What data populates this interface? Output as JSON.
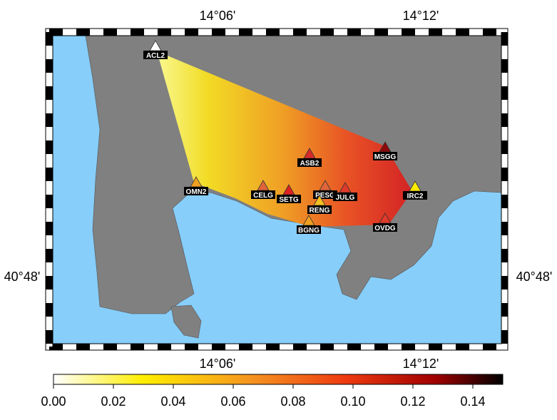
{
  "map": {
    "top_labels": [
      "14°06'",
      "14°12'"
    ],
    "bottom_labels": [
      "14°06'",
      "14°12'"
    ],
    "left_label": "40°48'",
    "right_label": "40°48'",
    "sea_color": "#87cefa",
    "land_color": "#808080",
    "stations": [
      {
        "label": "ACL2",
        "color": "#ffffff"
      },
      {
        "label": "MSGG",
        "color": "#8b0a0a"
      },
      {
        "label": "ASB2",
        "color": "#d42a2a"
      },
      {
        "label": "OMN2",
        "color": "#f0a020"
      },
      {
        "label": "CELG",
        "color": "#e0643a"
      },
      {
        "label": "SETG",
        "color": "#e02020"
      },
      {
        "label": "PESG",
        "color": "#e0643a"
      },
      {
        "label": "JULG",
        "color": "#e03a2a"
      },
      {
        "label": "IRC2",
        "color": "#ffec00"
      },
      {
        "label": "RENG",
        "color": "#f5c020"
      },
      {
        "label": "BGNG",
        "color": "#f0a020"
      },
      {
        "label": "OVDG",
        "color": "#e03a2a"
      }
    ],
    "colorbar": {
      "range": [
        0,
        0.15
      ],
      "ticks": [
        {
          "value": 0,
          "label": "0.00"
        },
        {
          "value": 0.02,
          "label": "0.02"
        },
        {
          "value": 0.04,
          "label": "0.04"
        },
        {
          "value": 0.06,
          "label": "0.06"
        },
        {
          "value": 0.08,
          "label": "0.08"
        },
        {
          "value": 0.1,
          "label": "0.10"
        },
        {
          "value": 0.12,
          "label": "0.12"
        },
        {
          "value": 0.14,
          "label": "0.14"
        }
      ]
    }
  }
}
